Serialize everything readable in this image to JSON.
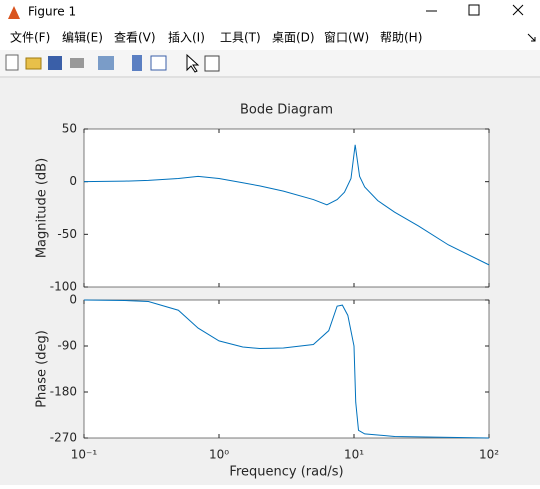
{
  "window": {
    "title": "Figure 1"
  },
  "menu": [
    "文件(F)",
    "编辑(E)",
    "查看(V)",
    "插入(I)",
    "工具(T)",
    "桌面(D)",
    "窗口(W)",
    "帮助(H)"
  ],
  "chart_data": [
    {
      "type": "line",
      "title": "Bode Diagram",
      "y_label": "Magnitude (dB)",
      "color": "#0072bd",
      "log_x": true,
      "x": [
        0.1,
        0.2,
        0.3,
        0.5,
        0.7,
        1,
        1.5,
        2,
        3,
        5,
        6.3,
        7.5,
        8.5,
        9.5,
        10.2,
        11,
        12,
        15,
        20,
        30,
        50,
        100
      ],
      "values": [
        0,
        0.5,
        1.2,
        3,
        5,
        3,
        -1,
        -4,
        -9,
        -17,
        -22,
        -17,
        -10,
        3,
        35,
        5,
        -5,
        -18,
        -29,
        -42,
        -60,
        -79
      ],
      "xlim": [
        0.1,
        100
      ],
      "ylim": [
        -100,
        50
      ],
      "yticks": [
        -100,
        -50,
        0,
        50
      ]
    },
    {
      "type": "line",
      "x_label": "Frequency  (rad/s)",
      "y_label": "Phase (deg)",
      "color": "#0072bd",
      "log_x": true,
      "x": [
        0.1,
        0.2,
        0.3,
        0.5,
        0.7,
        1,
        1.5,
        2,
        3,
        5,
        6.5,
        7.5,
        8.2,
        9,
        10,
        10.3,
        10.8,
        12,
        20,
        100
      ],
      "values": [
        0,
        -1,
        -3,
        -20,
        -55,
        -80,
        -92,
        -95,
        -94,
        -87,
        -60,
        -12,
        -10,
        -30,
        -90,
        -200,
        -255,
        -262,
        -267,
        -270
      ],
      "xlim": [
        0.1,
        100
      ],
      "ylim": [
        -270,
        0
      ],
      "yticks": [
        -270,
        -180,
        -90,
        0
      ],
      "xticks": [
        {
          "value": 0.1,
          "label": "10⁻¹"
        },
        {
          "value": 1,
          "label": "10⁰"
        },
        {
          "value": 10,
          "label": "10¹"
        },
        {
          "value": 100,
          "label": "10²"
        }
      ]
    }
  ]
}
